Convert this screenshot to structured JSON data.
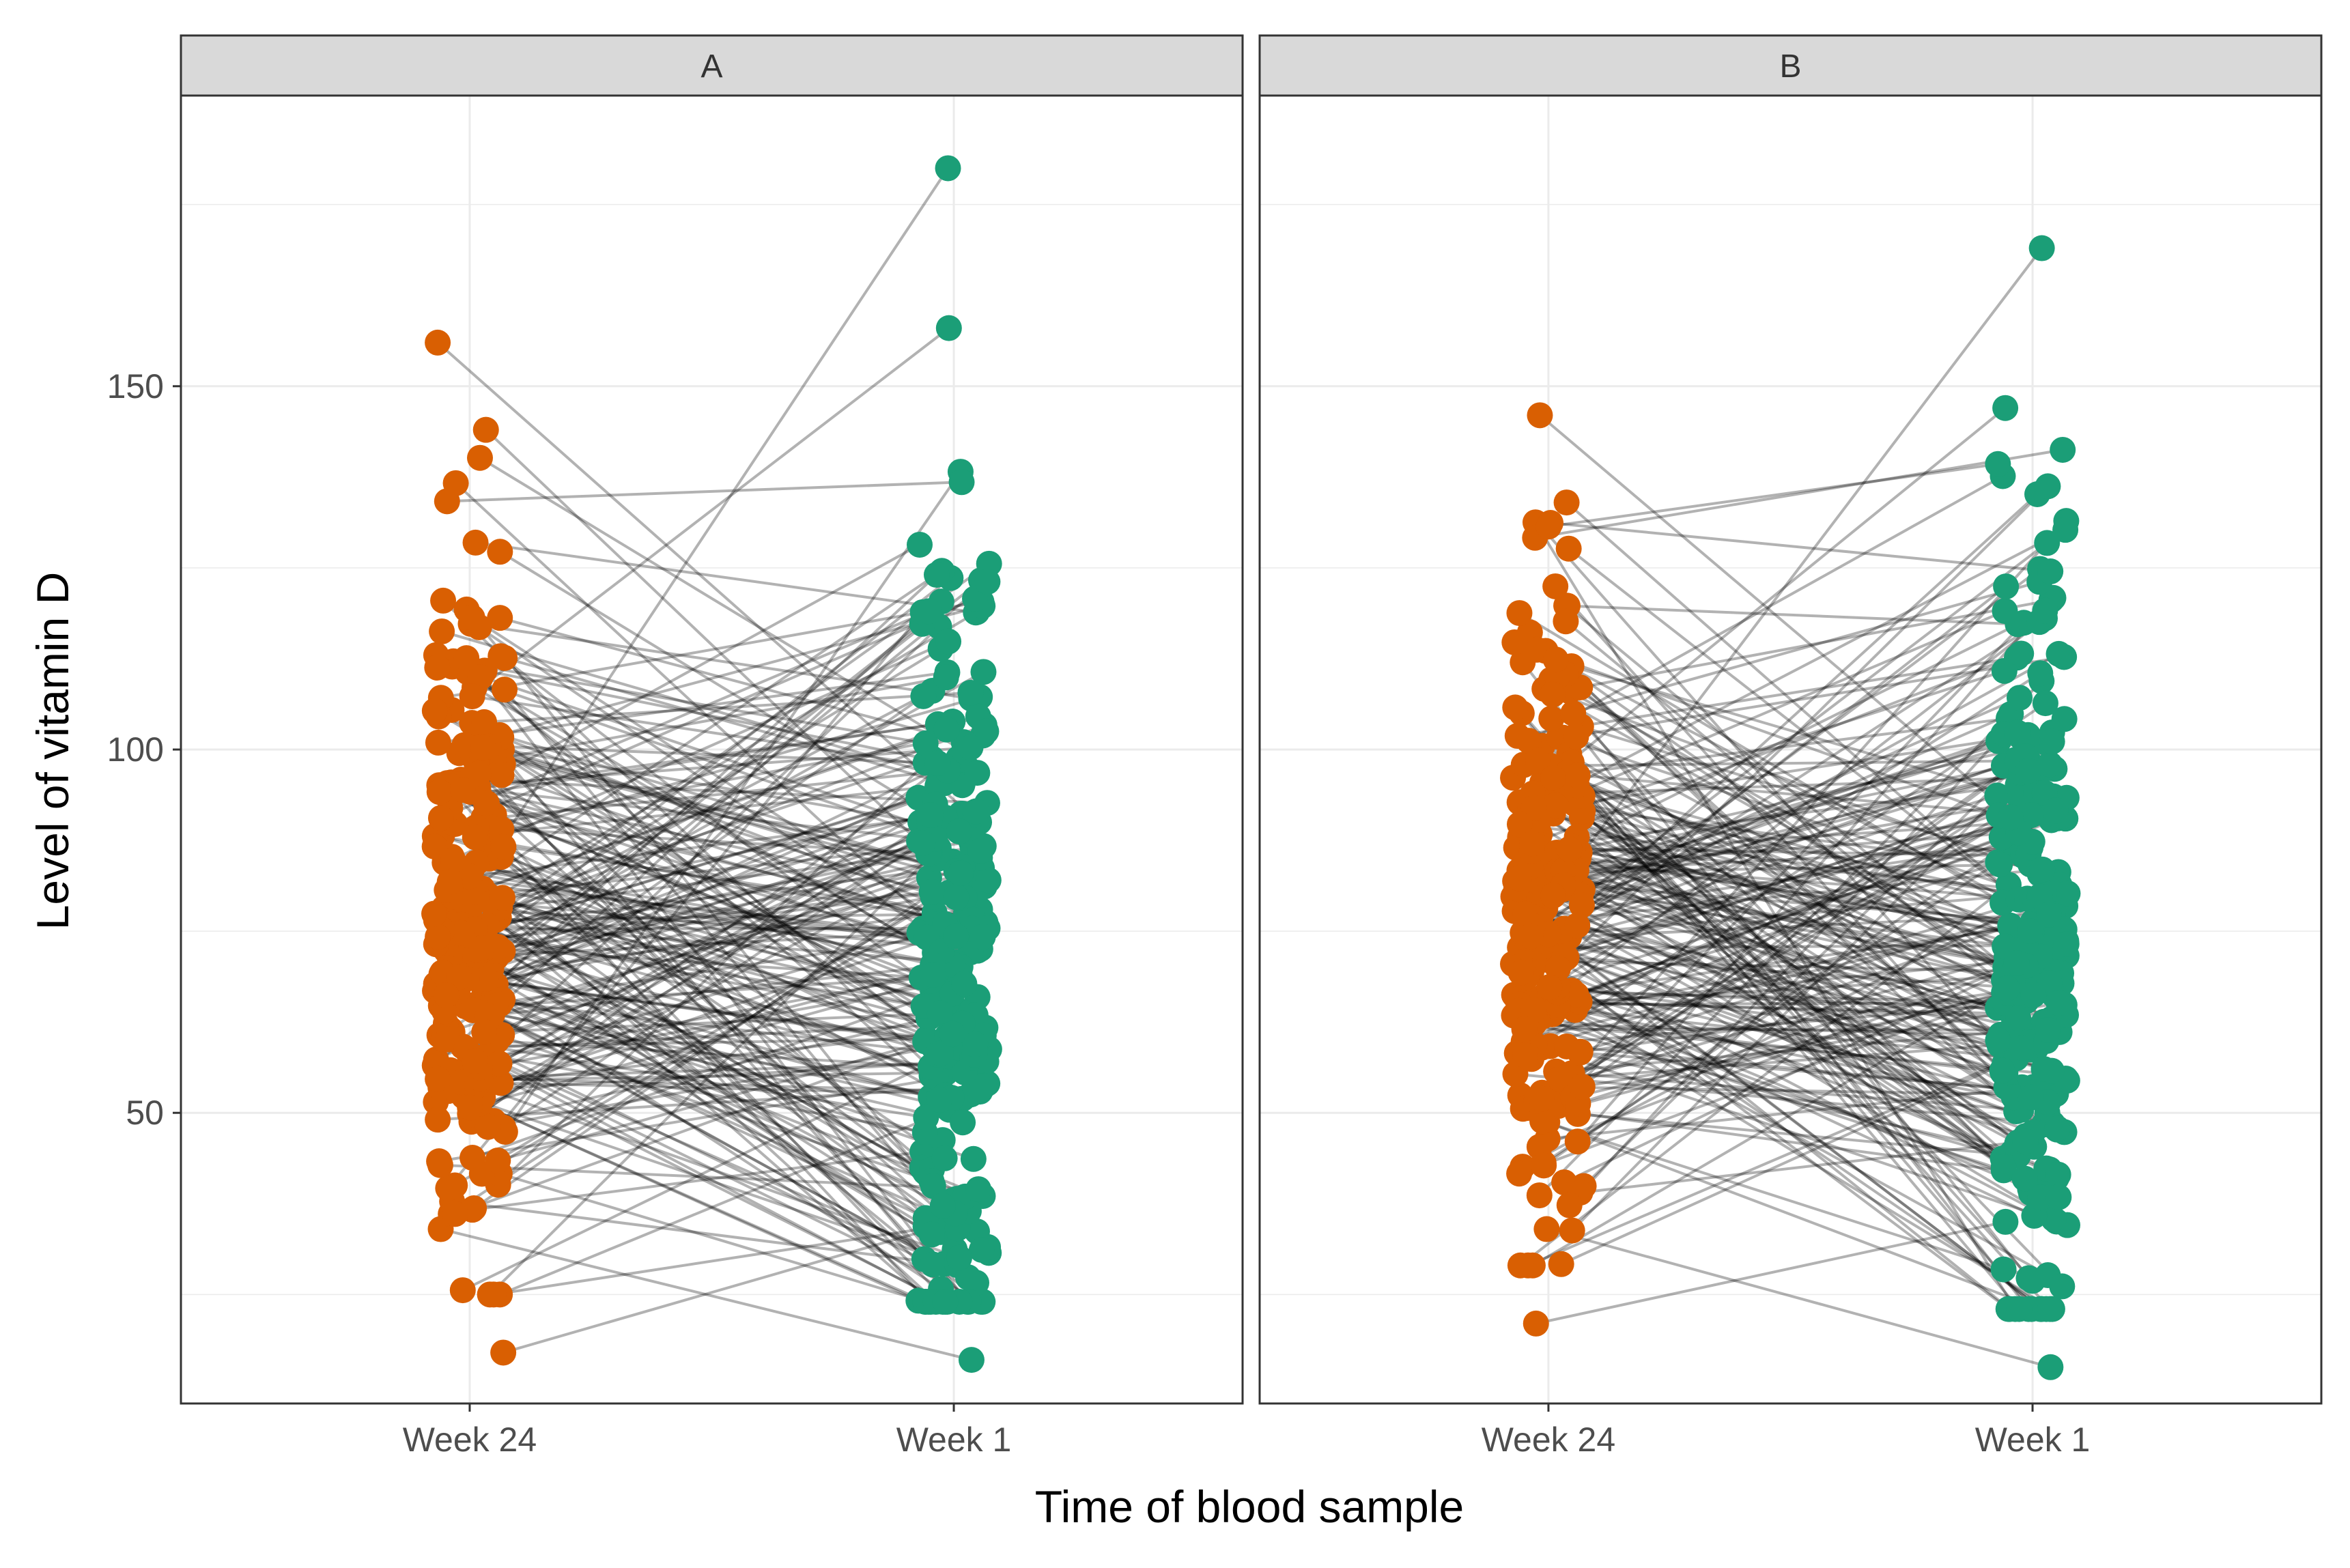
{
  "chart_data": {
    "type": "line",
    "subtype": "paired-slope-plot",
    "facets": [
      {
        "label": "A",
        "n_pairs": 250,
        "seed": 7,
        "left_range": [
          17,
          156
        ],
        "right_range": [
          16,
          180
        ]
      },
      {
        "label": "B",
        "n_pairs": 250,
        "seed": 21,
        "left_range": [
          21,
          146
        ],
        "right_range": [
          15,
          169
        ]
      }
    ],
    "categories": [
      "Week 24",
      "Week 1"
    ],
    "xlabel": "Time of blood sample",
    "ylabel": "Level of vitamin D",
    "ylim": [
      10,
      190
    ],
    "yticks": [
      50,
      100,
      150
    ],
    "ytick_labels": [
      "50",
      "100",
      "150"
    ],
    "y_minor_ticks": [
      25,
      75,
      125,
      175
    ],
    "colors": {
      "Week 24": "#D95F02",
      "Week 1": "#1B9E77",
      "line": "#000000",
      "strip_fill": "#D9D9D9",
      "grid": "#EBEBEB"
    },
    "grid": true
  }
}
